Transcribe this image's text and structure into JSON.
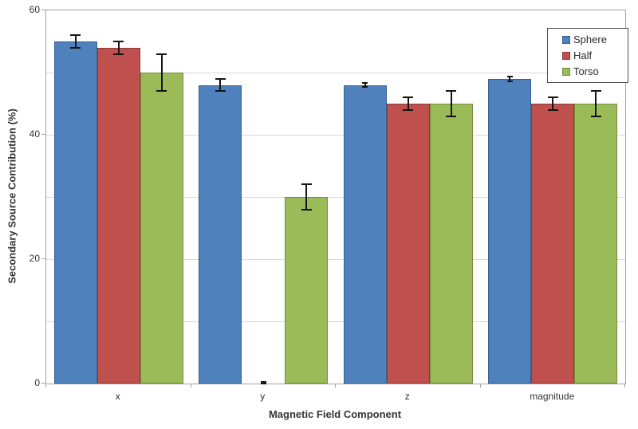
{
  "chart_data": {
    "type": "bar",
    "title": "",
    "xlabel": "Magnetic Field Component",
    "ylabel": "Secondary Source Contribution (%)",
    "ylim": [
      0,
      60
    ],
    "ytick_values": [
      0,
      20,
      40,
      60
    ],
    "ytick_labels": [
      "0",
      "20",
      "40",
      "60"
    ],
    "gridline_interval": 10,
    "grid": true,
    "legend_position": "top-right-overlay",
    "categories": [
      "x",
      "y",
      "z",
      "magnitude"
    ],
    "series": [
      {
        "name": "Sphere",
        "color": "#4F81BD",
        "border_color": "#36618F",
        "values": [
          55,
          48,
          48,
          49
        ],
        "errors": [
          1,
          1,
          0.35,
          0.35
        ]
      },
      {
        "name": "Half",
        "color": "#C0504D",
        "border_color": "#8F3B39",
        "values": [
          54,
          0,
          45,
          45
        ],
        "errors": [
          1,
          0.2,
          1,
          1
        ]
      },
      {
        "name": "Torso",
        "color": "#9BBB59",
        "border_color": "#748C41",
        "values": [
          50,
          30,
          45,
          45
        ],
        "errors": [
          3,
          2,
          2,
          2
        ]
      }
    ],
    "error_bar_color": "#141414"
  },
  "colors": {
    "background": "#FFFFFF",
    "gridline": "#D9D9D9",
    "axis": "#A3A3A3",
    "text": "#343434",
    "legend_border": "#4D4D4D"
  }
}
